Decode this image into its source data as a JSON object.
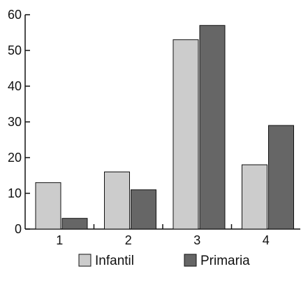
{
  "chart_data": {
    "type": "bar",
    "title": "",
    "xlabel": "",
    "ylabel": "",
    "categories": [
      "1",
      "2",
      "3",
      "4"
    ],
    "series": [
      {
        "name": "Infantil",
        "values": [
          13,
          16,
          53,
          18
        ],
        "color": "#cccccc"
      },
      {
        "name": "Primaria",
        "values": [
          3,
          11,
          57,
          29
        ],
        "color": "#666666"
      }
    ],
    "ylim": [
      0,
      60
    ],
    "yticks": [
      0,
      10,
      20,
      30,
      40,
      50,
      60
    ],
    "grid": false,
    "legend_position": "bottom-center",
    "bar_outline_color": "#111111",
    "axis_color": "#111111"
  }
}
